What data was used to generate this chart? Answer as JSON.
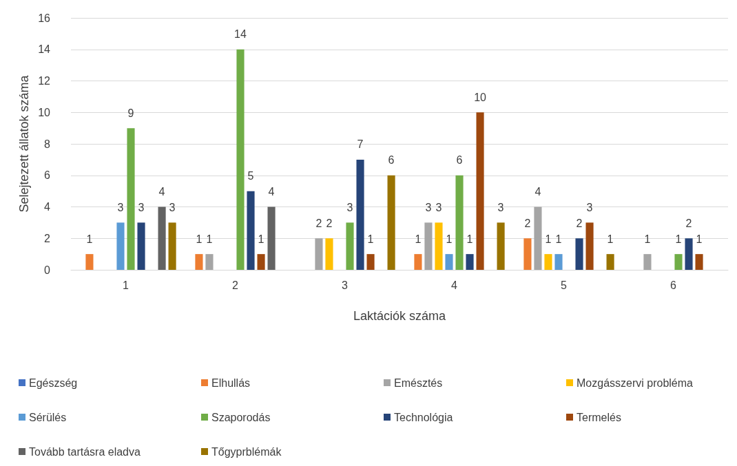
{
  "chart_data": {
    "type": "bar",
    "xlabel": "Laktációk száma",
    "ylabel": "Selejtezett állatok száma",
    "categories": [
      "1",
      "2",
      "3",
      "4",
      "5",
      "6"
    ],
    "ylim": [
      0,
      16
    ],
    "yticks": [
      0,
      2,
      4,
      6,
      8,
      10,
      12,
      14,
      16
    ],
    "grid": "y",
    "legend": "bottom",
    "data_labels": true,
    "series": [
      {
        "name": "Egészség",
        "color": "#4472c4",
        "values": [
          null,
          null,
          null,
          null,
          null,
          null
        ]
      },
      {
        "name": "Elhullás",
        "color": "#ed7d31",
        "values": [
          1,
          1,
          null,
          1,
          2,
          null
        ]
      },
      {
        "name": "Emésztés",
        "color": "#a5a5a5",
        "values": [
          null,
          1,
          2,
          3,
          4,
          1
        ]
      },
      {
        "name": "Mozgásszervi probléma",
        "color": "#ffc000",
        "values": [
          null,
          null,
          2,
          3,
          1,
          null
        ]
      },
      {
        "name": "Sérülés",
        "color": "#5b9bd5",
        "values": [
          3,
          null,
          null,
          1,
          1,
          null
        ]
      },
      {
        "name": "Szaporodás",
        "color": "#70ad47",
        "values": [
          9,
          14,
          3,
          6,
          null,
          1
        ]
      },
      {
        "name": "Technológia",
        "color": "#264478",
        "values": [
          3,
          5,
          7,
          1,
          2,
          2
        ]
      },
      {
        "name": "Termelés",
        "color": "#9e480e",
        "values": [
          null,
          1,
          1,
          10,
          3,
          1
        ]
      },
      {
        "name": "Tovább tartásra eladva",
        "color": "#636363",
        "values": [
          4,
          4,
          null,
          null,
          null,
          null
        ]
      },
      {
        "name": "Tőgyprblémák",
        "color": "#997300",
        "values": [
          3,
          null,
          6,
          3,
          1,
          null
        ]
      }
    ]
  }
}
